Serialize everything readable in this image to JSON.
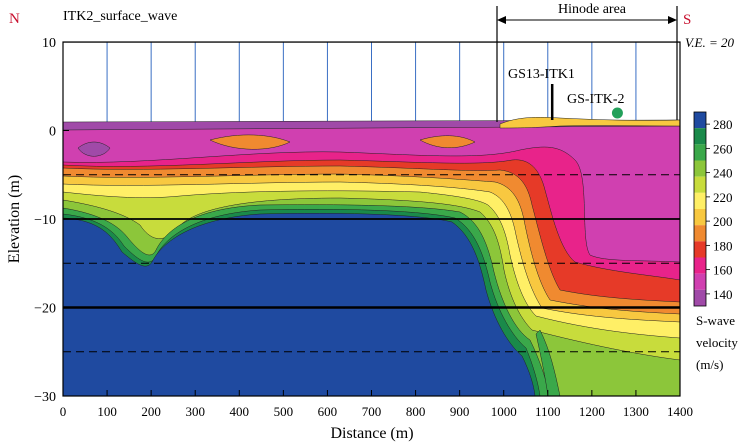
{
  "chart_data": {
    "type": "heatmap",
    "title": "ITK2_surface_wave",
    "xlabel": "Distance (m)",
    "ylabel": "Elevation (m)",
    "xlim": [
      0,
      1400
    ],
    "ylim": [
      -30,
      10
    ],
    "x_ticks": [
      "0",
      "100",
      "200",
      "300",
      "400",
      "500",
      "600",
      "700",
      "800",
      "900",
      "1000",
      "1100",
      "1200",
      "1300",
      "1400"
    ],
    "y_ticks": [
      "10",
      "0",
      "−10",
      "−20",
      "−30"
    ],
    "corner_left": "N",
    "corner_right": "S",
    "vertical_exaggeration": "V.E. = 20",
    "region_label": "Hinode area",
    "region_x": [
      985,
      1395
    ],
    "annotations": [
      {
        "label": "GS13-ITK1",
        "x": 1110,
        "type": "borehole"
      },
      {
        "label": "GS-ITK-2",
        "x": 1258,
        "type": "point"
      }
    ],
    "station_x": [
      100,
      200,
      300,
      400,
      500,
      600,
      700,
      800,
      900,
      1000,
      1100,
      1200,
      1300
    ],
    "legend": {
      "title_lines": [
        "S-wave",
        "velocity",
        "(m/s)"
      ],
      "tick_labels": [
        "280",
        "260",
        "240",
        "220",
        "200",
        "180",
        "160",
        "140"
      ],
      "colors": [
        "#1f4aa0",
        "#1a8a4a",
        "#3aa84a",
        "#8cc63a",
        "#c8dc3c",
        "#ffef66",
        "#f8c840",
        "#f08a30",
        "#e63a28",
        "#e8238a",
        "#d040b0",
        "#a04aa8"
      ]
    },
    "dashed_levels": [
      -5,
      -15,
      -25
    ],
    "solid_levels": [
      -10,
      -20
    ],
    "colorbar_range": [
      130,
      290
    ]
  },
  "colors": {
    "title_letter": "#c8102e",
    "station_line": "#3a6fc4",
    "marker": "#22a05a"
  }
}
